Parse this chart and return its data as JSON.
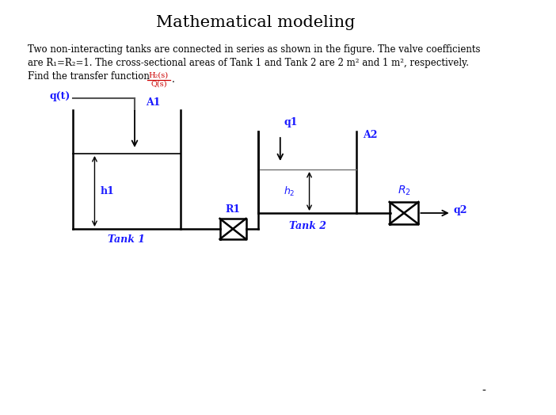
{
  "title": "Mathematical modeling",
  "title_fontsize": 15,
  "background_color": "#ffffff",
  "text_color": "#000000",
  "body_line1": "Two non-interacting tanks are connected in series as shown in the figure. The valve coefficients",
  "body_line2": "are R₁=R₂=1. The cross-sectional areas of Tank 1 and Tank 2 are 2 m² and 1 m², respectively.",
  "body_line3": "Find the transfer function",
  "fraction_num": "H₂(s)",
  "fraction_den": "Q(s)",
  "label_color": "#1a1aff",
  "pipe_color": "#000000",
  "line_width": 1.8,
  "font_family": "serif",
  "tank1_label_color": "#1a1aff",
  "tank2_label_color": "#1a1aff"
}
